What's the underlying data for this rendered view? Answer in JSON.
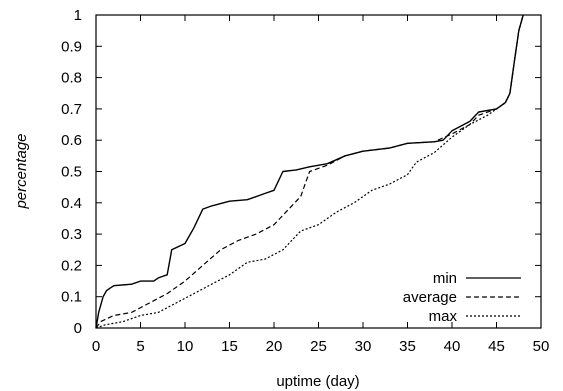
{
  "chart_data": {
    "type": "line",
    "title": "",
    "xlabel": "uptime (day)",
    "ylabel": "percentage",
    "xlim": [
      0,
      50
    ],
    "ylim": [
      0,
      1
    ],
    "x_ticks": [
      0,
      5,
      10,
      15,
      20,
      25,
      30,
      35,
      40,
      45,
      50
    ],
    "y_ticks": [
      0,
      0.1,
      0.2,
      0.3,
      0.4,
      0.5,
      0.6,
      0.7,
      0.8,
      0.9,
      1
    ],
    "x_tick_labels": [
      "0",
      "5",
      "10",
      "15",
      "20",
      "25",
      "30",
      "35",
      "40",
      "45",
      "50"
    ],
    "y_tick_labels": [
      "0",
      "0.1",
      "0.2",
      "0.3",
      "0.4",
      "0.5",
      "0.6",
      "0.7",
      "0.8",
      "0.9",
      "1"
    ],
    "grid": false,
    "legend_position": "bottom-right",
    "colors": {
      "line": "#000000"
    },
    "series": [
      {
        "name": "min",
        "style": "solid",
        "points": [
          [
            0,
            0
          ],
          [
            0.3,
            0.05
          ],
          [
            0.8,
            0.1
          ],
          [
            1.2,
            0.12
          ],
          [
            2,
            0.135
          ],
          [
            4,
            0.14
          ],
          [
            5,
            0.15
          ],
          [
            6.5,
            0.15
          ],
          [
            7,
            0.16
          ],
          [
            8,
            0.17
          ],
          [
            8.5,
            0.25
          ],
          [
            10,
            0.27
          ],
          [
            11,
            0.32
          ],
          [
            12,
            0.38
          ],
          [
            13,
            0.39
          ],
          [
            15,
            0.405
          ],
          [
            17,
            0.41
          ],
          [
            19,
            0.43
          ],
          [
            20,
            0.44
          ],
          [
            21,
            0.5
          ],
          [
            22.5,
            0.505
          ],
          [
            24,
            0.515
          ],
          [
            26,
            0.525
          ],
          [
            28,
            0.55
          ],
          [
            30,
            0.565
          ],
          [
            33,
            0.575
          ],
          [
            35,
            0.59
          ],
          [
            38,
            0.595
          ],
          [
            39,
            0.6
          ],
          [
            40,
            0.63
          ],
          [
            42,
            0.66
          ],
          [
            43,
            0.69
          ],
          [
            45,
            0.7
          ],
          [
            46,
            0.72
          ],
          [
            46.5,
            0.75
          ],
          [
            47,
            0.85
          ],
          [
            47.5,
            0.95
          ],
          [
            48,
            1
          ]
        ]
      },
      {
        "name": "average",
        "style": "dashed",
        "points": [
          [
            0,
            0
          ],
          [
            0.5,
            0.02
          ],
          [
            2,
            0.04
          ],
          [
            4,
            0.05
          ],
          [
            6,
            0.08
          ],
          [
            8,
            0.11
          ],
          [
            10,
            0.15
          ],
          [
            12,
            0.2
          ],
          [
            14,
            0.25
          ],
          [
            16,
            0.28
          ],
          [
            18,
            0.3
          ],
          [
            20,
            0.33
          ],
          [
            22,
            0.39
          ],
          [
            23,
            0.42
          ],
          [
            24,
            0.5
          ],
          [
            26,
            0.52
          ],
          [
            28,
            0.55
          ],
          [
            30,
            0.565
          ],
          [
            33,
            0.575
          ],
          [
            35,
            0.59
          ],
          [
            38,
            0.595
          ],
          [
            40,
            0.62
          ],
          [
            42,
            0.65
          ],
          [
            43,
            0.68
          ],
          [
            45,
            0.7
          ],
          [
            46,
            0.72
          ],
          [
            46.5,
            0.75
          ],
          [
            47,
            0.85
          ],
          [
            47.5,
            0.95
          ],
          [
            48,
            1
          ]
        ]
      },
      {
        "name": "max",
        "style": "dotted",
        "points": [
          [
            0,
            0
          ],
          [
            1,
            0.01
          ],
          [
            3,
            0.02
          ],
          [
            5,
            0.04
          ],
          [
            7,
            0.05
          ],
          [
            9,
            0.08
          ],
          [
            11,
            0.11
          ],
          [
            13,
            0.14
          ],
          [
            15,
            0.17
          ],
          [
            17,
            0.21
          ],
          [
            19,
            0.22
          ],
          [
            21,
            0.25
          ],
          [
            23,
            0.31
          ],
          [
            25,
            0.33
          ],
          [
            27,
            0.37
          ],
          [
            29,
            0.4
          ],
          [
            31,
            0.44
          ],
          [
            33,
            0.46
          ],
          [
            35,
            0.49
          ],
          [
            36,
            0.53
          ],
          [
            38,
            0.56
          ],
          [
            40,
            0.61
          ],
          [
            42,
            0.65
          ],
          [
            44,
            0.68
          ],
          [
            45,
            0.7
          ],
          [
            46,
            0.72
          ],
          [
            46.5,
            0.75
          ],
          [
            47,
            0.85
          ],
          [
            47.5,
            0.95
          ],
          [
            48,
            1
          ]
        ]
      }
    ]
  }
}
